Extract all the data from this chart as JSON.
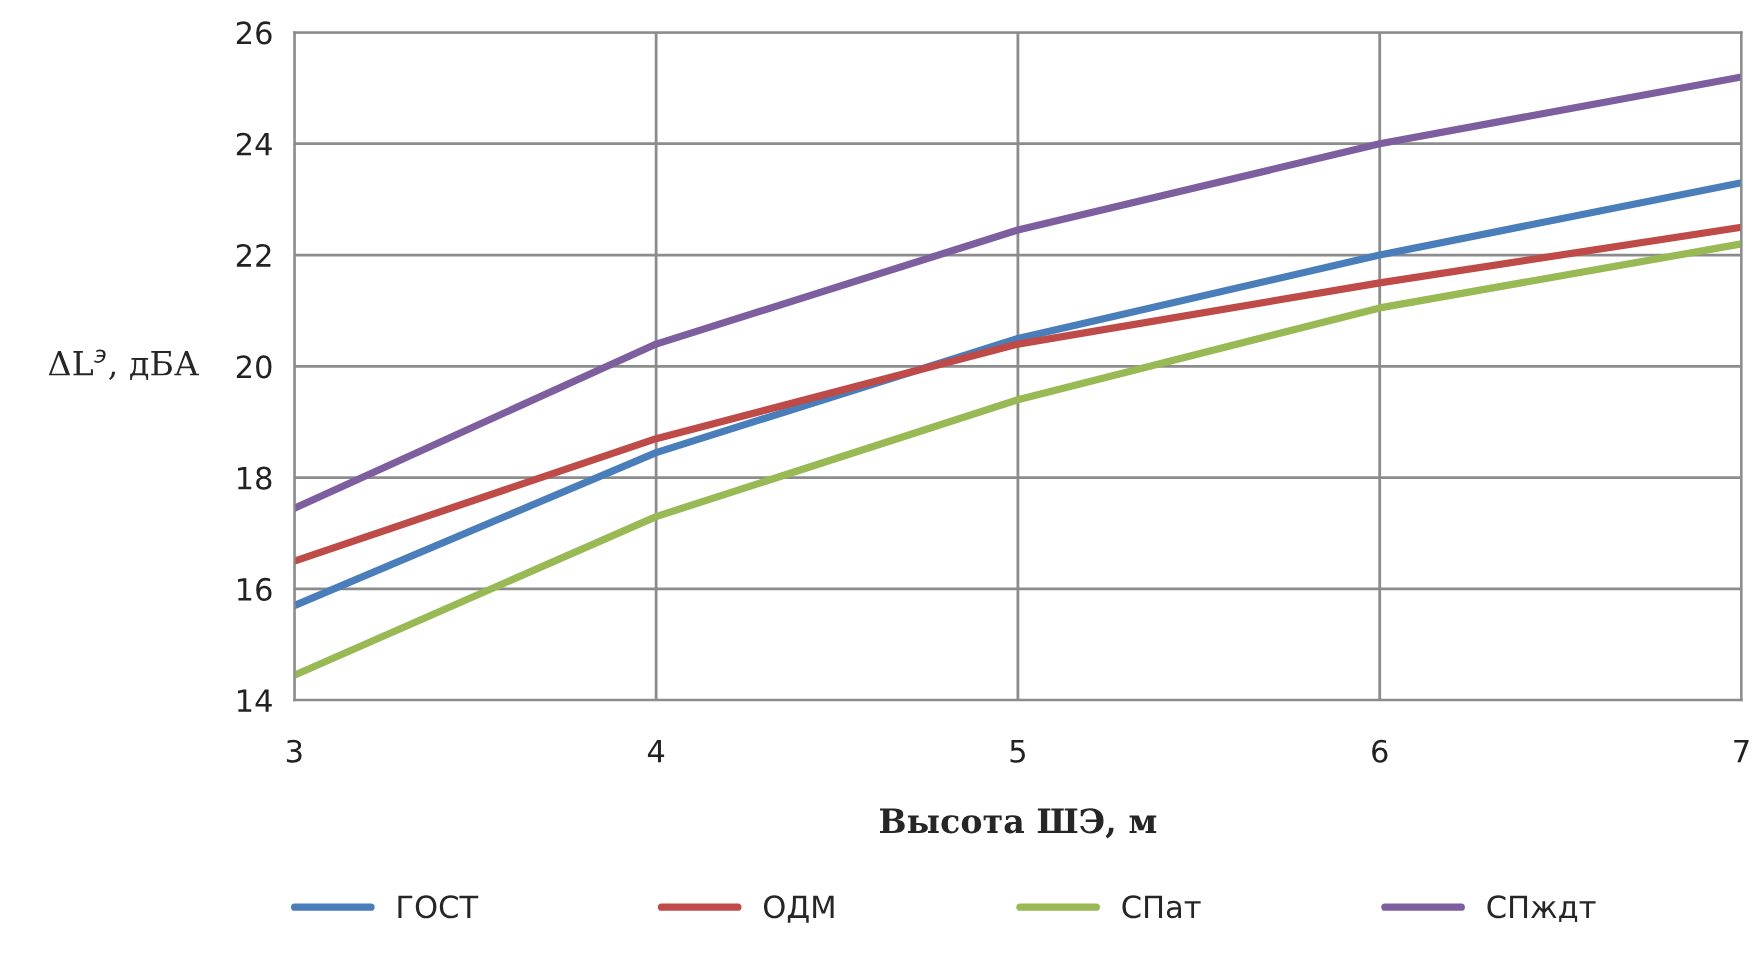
{
  "chart_data": {
    "type": "line",
    "xlabel": "Высота ШЭ, м",
    "ylabel": "ΔL$^{э}$, дБА",
    "x": [
      3,
      4,
      5,
      6,
      7
    ],
    "series": [
      {
        "name": "ГОСТ",
        "color": "#4a7ebb",
        "values": [
          15.7,
          18.45,
          20.5,
          22.0,
          23.3
        ]
      },
      {
        "name": "ОДМ",
        "color": "#be4b48",
        "values": [
          16.5,
          18.7,
          20.4,
          21.5,
          22.5
        ]
      },
      {
        "name": "СПат",
        "color": "#98b954",
        "values": [
          14.45,
          17.3,
          19.4,
          21.05,
          22.2
        ]
      },
      {
        "name": "СПждт",
        "color": "#7d5fa0",
        "values": [
          17.45,
          20.4,
          22.45,
          24.0,
          25.2
        ]
      }
    ],
    "xlim": [
      3,
      7
    ],
    "xticks": [
      3,
      4,
      5,
      6,
      7
    ],
    "ylim": [
      14,
      26
    ],
    "yticks": [
      14,
      16,
      18,
      20,
      22,
      24,
      26
    ],
    "grid": true,
    "legend": "bottom",
    "marker": "none",
    "line_style": "solid"
  }
}
